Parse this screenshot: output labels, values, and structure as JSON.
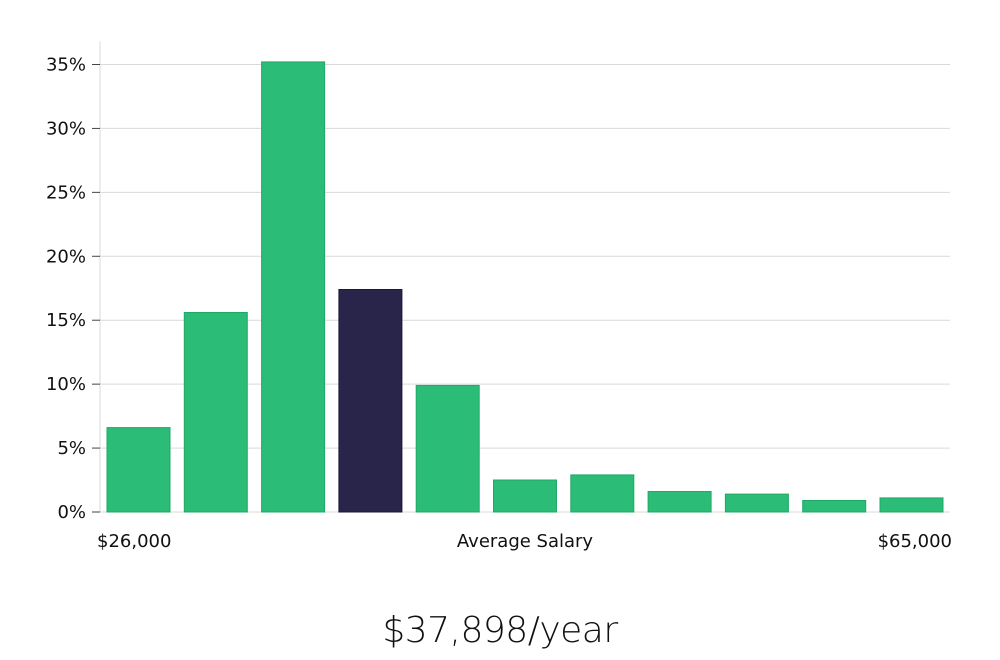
{
  "headline": "$37,898/year",
  "chart_data": {
    "type": "bar",
    "x_labels": {
      "left": "$26,000",
      "center": "Average Salary",
      "right": "$65,000"
    },
    "y_ticks": [
      "0%",
      "5%",
      "10%",
      "15%",
      "20%",
      "25%",
      "30%",
      "35%"
    ],
    "y_tick_values": [
      0,
      5,
      10,
      15,
      20,
      25,
      30,
      35
    ],
    "ylim": [
      0,
      36.8
    ],
    "grid": true,
    "values": [
      6.6,
      15.6,
      35.2,
      17.4,
      9.9,
      2.5,
      2.9,
      1.6,
      1.4,
      0.9,
      1.1
    ],
    "highlight_index": 3,
    "colors": {
      "bar": "#2bbd77",
      "highlight": "#29254a",
      "grid": "#d9d9d9"
    }
  }
}
